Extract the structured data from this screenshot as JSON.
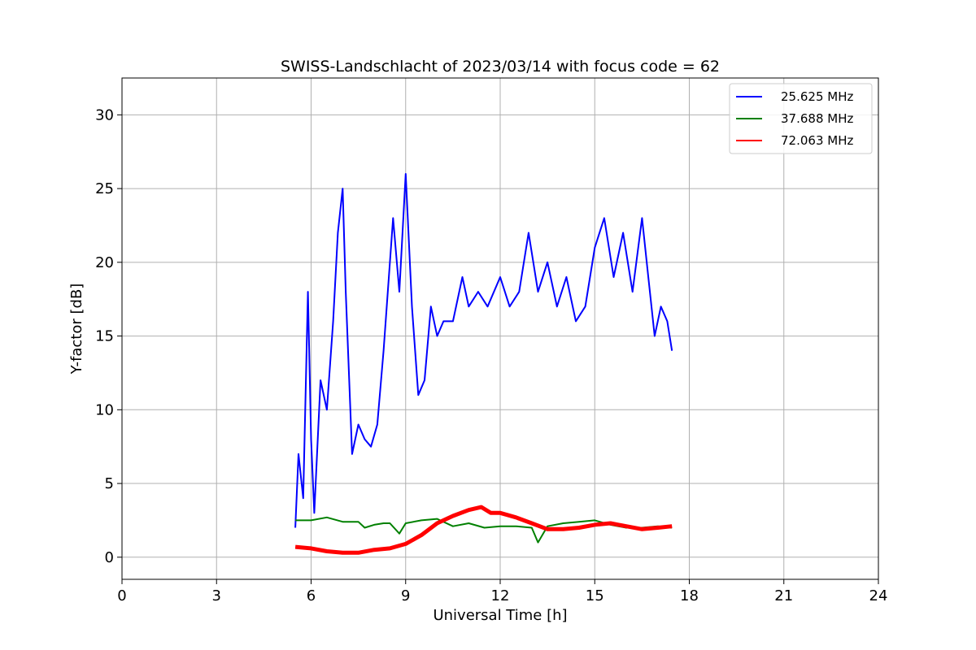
{
  "chart_data": {
    "type": "line",
    "title": "SWISS-Landschlacht of 2023/03/14 with focus code = 62",
    "xlabel": "Universal Time [h]",
    "ylabel": "Y-factor [dB]",
    "xlim": [
      0,
      24
    ],
    "ylim": [
      -1.5,
      32.5
    ],
    "xticks": [
      0,
      3,
      6,
      9,
      12,
      15,
      18,
      21,
      24
    ],
    "yticks": [
      0,
      5,
      10,
      15,
      20,
      25,
      30
    ],
    "grid": true,
    "legend_position": "top-right",
    "series": [
      {
        "name": "25.625 MHz",
        "color": "#0000ff",
        "x": [
          5.5,
          5.6,
          5.75,
          5.9,
          6.0,
          6.1,
          6.3,
          6.5,
          6.7,
          6.85,
          7.0,
          7.1,
          7.3,
          7.5,
          7.7,
          7.9,
          8.1,
          8.3,
          8.5,
          8.6,
          8.8,
          9.0,
          9.2,
          9.4,
          9.6,
          9.8,
          10.0,
          10.2,
          10.5,
          10.8,
          11.0,
          11.3,
          11.6,
          12.0,
          12.3,
          12.6,
          12.9,
          13.2,
          13.5,
          13.8,
          14.1,
          14.4,
          14.7,
          15.0,
          15.3,
          15.6,
          15.9,
          16.2,
          16.5,
          16.7,
          16.9,
          17.1,
          17.3,
          17.45
        ],
        "values": [
          2.0,
          7.0,
          4.0,
          18.0,
          8.0,
          3.0,
          12.0,
          10.0,
          16.0,
          22.0,
          25.0,
          18.0,
          7.0,
          9.0,
          8.0,
          7.5,
          9.0,
          14.0,
          20.0,
          23.0,
          18.0,
          26.0,
          17.0,
          11.0,
          12.0,
          17.0,
          15.0,
          16.0,
          16.0,
          19.0,
          17.0,
          18.0,
          17.0,
          19.0,
          17.0,
          18.0,
          22.0,
          18.0,
          20.0,
          17.0,
          19.0,
          16.0,
          17.0,
          21.0,
          23.0,
          19.0,
          22.0,
          18.0,
          23.0,
          19.0,
          15.0,
          17.0,
          16.0,
          14.0
        ]
      },
      {
        "name": "37.688 MHz",
        "color": "#008000",
        "x": [
          5.5,
          6.0,
          6.5,
          7.0,
          7.5,
          7.7,
          8.0,
          8.3,
          8.5,
          8.8,
          9.0,
          9.5,
          10.0,
          10.5,
          11.0,
          11.5,
          12.0,
          12.5,
          13.0,
          13.2,
          13.5,
          14.0,
          14.5,
          15.0,
          15.5,
          16.0,
          16.5,
          17.0,
          17.45
        ],
        "values": [
          2.5,
          2.5,
          2.7,
          2.4,
          2.4,
          2.0,
          2.2,
          2.3,
          2.3,
          1.6,
          2.3,
          2.5,
          2.6,
          2.1,
          2.3,
          2.0,
          2.1,
          2.1,
          2.0,
          1.0,
          2.1,
          2.3,
          2.4,
          2.5,
          2.2,
          2.0,
          2.0,
          2.1,
          2.0
        ]
      },
      {
        "name": "72.063 MHz",
        "color": "#ff0000",
        "x": [
          5.5,
          6.0,
          6.5,
          7.0,
          7.5,
          8.0,
          8.5,
          9.0,
          9.5,
          10.0,
          10.5,
          11.0,
          11.4,
          11.7,
          12.0,
          12.5,
          13.0,
          13.5,
          14.0,
          14.5,
          15.0,
          15.5,
          16.0,
          16.5,
          17.0,
          17.45
        ],
        "values": [
          0.7,
          0.6,
          0.4,
          0.3,
          0.3,
          0.5,
          0.6,
          0.9,
          1.5,
          2.3,
          2.8,
          3.2,
          3.4,
          3.0,
          3.0,
          2.7,
          2.3,
          1.9,
          1.9,
          2.0,
          2.2,
          2.3,
          2.1,
          1.9,
          2.0,
          2.1
        ]
      }
    ]
  }
}
